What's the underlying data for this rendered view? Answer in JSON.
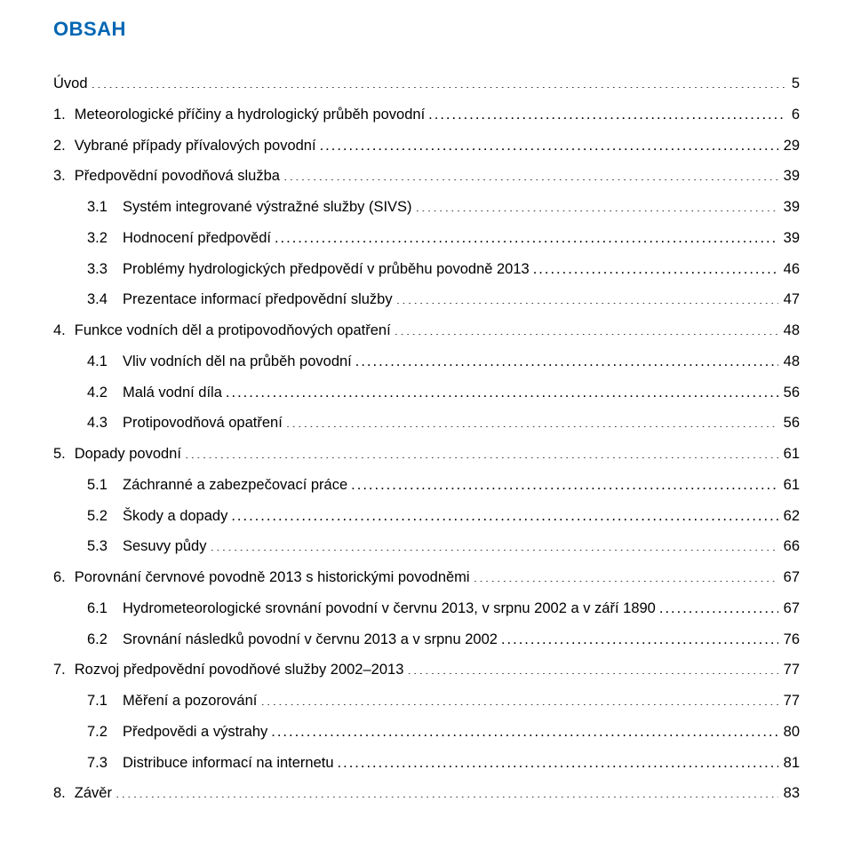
{
  "title": "OBSAH",
  "colors": {
    "title": "#0066b3",
    "text": "#000000",
    "background": "#ffffff"
  },
  "toc": [
    {
      "level": 0,
      "num": "",
      "label": "Úvod",
      "page": "5"
    },
    {
      "level": 0,
      "num": "1.",
      "label": "Meteorologické příčiny a hydrologický průběh povodní",
      "page": "6"
    },
    {
      "level": 0,
      "num": "2.",
      "label": "Vybrané případy přívalových povodní",
      "page": "29"
    },
    {
      "level": 0,
      "num": "3.",
      "label": "Předpovědní povodňová služba",
      "page": "39"
    },
    {
      "level": 1,
      "num": "3.1",
      "label": "Systém integrované výstražné služby (SIVS)",
      "page": "39"
    },
    {
      "level": 1,
      "num": "3.2",
      "label": "Hodnocení předpovědí",
      "page": "39"
    },
    {
      "level": 1,
      "num": "3.3",
      "label": "Problémy hydrologických předpovědí v průběhu povodně 2013",
      "page": "46"
    },
    {
      "level": 1,
      "num": "3.4",
      "label": "Prezentace informací předpovědní služby",
      "page": "47"
    },
    {
      "level": 0,
      "num": "4.",
      "label": "Funkce vodních děl a protipovodňových opatření",
      "page": "48"
    },
    {
      "level": 1,
      "num": "4.1",
      "label": "Vliv vodních děl na průběh povodní",
      "page": "48"
    },
    {
      "level": 1,
      "num": "4.2",
      "label": "Malá vodní díla",
      "page": "56"
    },
    {
      "level": 1,
      "num": "4.3",
      "label": "Protipovodňová opatření",
      "page": "56"
    },
    {
      "level": 0,
      "num": "5.",
      "label": "Dopady povodní",
      "page": "61"
    },
    {
      "level": 1,
      "num": "5.1",
      "label": "Záchranné a zabezpečovací práce",
      "page": "61"
    },
    {
      "level": 1,
      "num": "5.2",
      "label": "Škody a dopady",
      "page": "62"
    },
    {
      "level": 1,
      "num": "5.3",
      "label": "Sesuvy půdy",
      "page": "66"
    },
    {
      "level": 0,
      "num": "6.",
      "label": "Porovnání červnové povodně 2013 s historickými povodněmi",
      "page": "67"
    },
    {
      "level": 1,
      "num": "6.1",
      "label": "Hydrometeorologické srovnání povodní v červnu 2013, v srpnu 2002 a v září 1890",
      "page": "67"
    },
    {
      "level": 1,
      "num": "6.2",
      "label": "Srovnání následků povodní v červnu 2013 a v srpnu 2002",
      "page": "76"
    },
    {
      "level": 0,
      "num": "7.",
      "label": "Rozvoj předpovědní povodňové služby 2002–2013",
      "page": "77"
    },
    {
      "level": 1,
      "num": "7.1",
      "label": "Měření a pozorování",
      "page": "77"
    },
    {
      "level": 1,
      "num": "7.2",
      "label": "Předpovědi a výstrahy",
      "page": "80"
    },
    {
      "level": 1,
      "num": "7.3",
      "label": "Distribuce informací na internetu",
      "page": "81"
    },
    {
      "level": 0,
      "num": "8.",
      "label": "Závěr",
      "page": "83"
    }
  ]
}
